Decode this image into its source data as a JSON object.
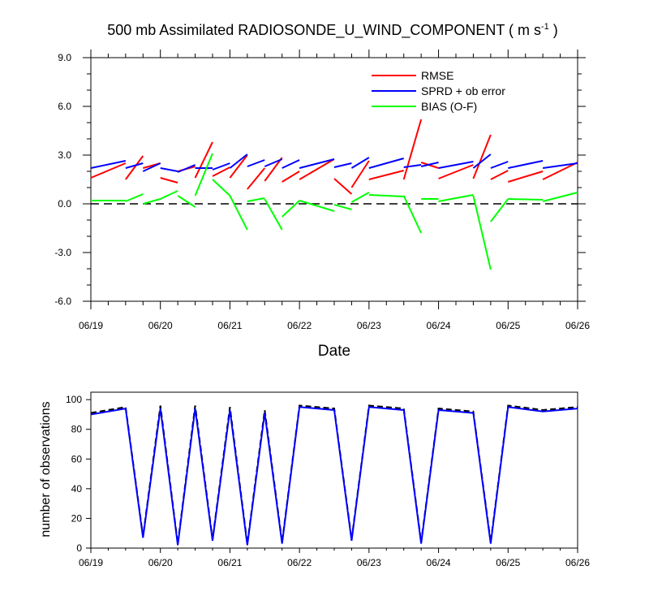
{
  "colors": {
    "rmse": "#ff0000",
    "spread": "#0000ff",
    "bias": "#00ff00",
    "axis": "#000000",
    "zero": "#000000"
  },
  "chart_data": [
    {
      "type": "line",
      "title": "500 mb Assimilated RADIOSONDE_U_WIND_COMPONENT ( m s",
      "title_units_exponent": "-1",
      "title_close": " )",
      "xlabel": "Date",
      "ylabel": "",
      "ylim": [
        -6.0,
        9.0
      ],
      "y_ticks": [
        -6.0,
        -3.0,
        0.0,
        3.0,
        6.0,
        9.0
      ],
      "y_tick_labels": [
        "-6.0",
        "-3.0",
        "0.0",
        "3.0",
        "6.0",
        "9.0"
      ],
      "xlim": [
        0,
        7
      ],
      "x_ticks": [
        0,
        1,
        2,
        3,
        4,
        5,
        6,
        7
      ],
      "x_tick_labels": [
        "06/19",
        "06/20",
        "06/21",
        "06/22",
        "06/23",
        "06/24",
        "06/25",
        "06/26"
      ],
      "zero_line": true,
      "legend_position": "top-right",
      "series": [
        {
          "name": "RMSE",
          "color_key": "rmse",
          "segments": [
            {
              "x": [
                0.0,
                0.5
              ],
              "y": [
                1.6,
                2.5
              ]
            },
            {
              "x": [
                0.5,
                0.75
              ],
              "y": [
                1.5,
                2.95
              ]
            },
            {
              "x": [
                0.75,
                1.0
              ],
              "y": [
                2.2,
                2.5
              ]
            },
            {
              "x": [
                1.0,
                1.25
              ],
              "y": [
                1.6,
                1.3
              ]
            },
            {
              "x": [
                1.25,
                1.5
              ],
              "y": [
                2.0,
                2.3
              ]
            },
            {
              "x": [
                1.5,
                1.75
              ],
              "y": [
                1.6,
                3.8
              ]
            },
            {
              "x": [
                1.75,
                2.0
              ],
              "y": [
                1.7,
                2.25
              ]
            },
            {
              "x": [
                2.0,
                2.25
              ],
              "y": [
                1.6,
                3.0
              ]
            },
            {
              "x": [
                2.25,
                2.5
              ],
              "y": [
                0.9,
                2.2
              ]
            },
            {
              "x": [
                2.5,
                2.75
              ],
              "y": [
                1.4,
                2.85
              ]
            },
            {
              "x": [
                2.75,
                3.0
              ],
              "y": [
                1.35,
                2.0
              ]
            },
            {
              "x": [
                3.0,
                3.5
              ],
              "y": [
                1.5,
                2.75
              ]
            },
            {
              "x": [
                3.5,
                3.75
              ],
              "y": [
                1.55,
                0.6
              ]
            },
            {
              "x": [
                3.75,
                4.0
              ],
              "y": [
                1.0,
                2.65
              ]
            },
            {
              "x": [
                4.0,
                4.5
              ],
              "y": [
                1.5,
                2.05
              ]
            },
            {
              "x": [
                4.5,
                4.75
              ],
              "y": [
                1.5,
                5.2
              ]
            },
            {
              "x": [
                4.75,
                5.0
              ],
              "y": [
                2.55,
                2.2
              ]
            },
            {
              "x": [
                5.0,
                5.5
              ],
              "y": [
                1.55,
                2.4
              ]
            },
            {
              "x": [
                5.5,
                5.75
              ],
              "y": [
                1.55,
                4.25
              ]
            },
            {
              "x": [
                5.75,
                6.0
              ],
              "y": [
                1.5,
                2.05
              ]
            },
            {
              "x": [
                6.0,
                6.5
              ],
              "y": [
                1.35,
                2.0
              ]
            },
            {
              "x": [
                6.5,
                7.0
              ],
              "y": [
                1.5,
                2.55
              ]
            }
          ]
        },
        {
          "name": "SPRD + ob error",
          "color_key": "spread",
          "segments": [
            {
              "x": [
                0.0,
                0.5
              ],
              "y": [
                2.2,
                2.65
              ]
            },
            {
              "x": [
                0.5,
                0.75
              ],
              "y": [
                2.2,
                2.5
              ]
            },
            {
              "x": [
                0.75,
                1.0
              ],
              "y": [
                2.0,
                2.5
              ]
            },
            {
              "x": [
                1.0,
                1.25
              ],
              "y": [
                2.2,
                2.0
              ]
            },
            {
              "x": [
                1.25,
                1.5
              ],
              "y": [
                1.95,
                2.4
              ]
            },
            {
              "x": [
                1.5,
                1.75
              ],
              "y": [
                2.2,
                2.2
              ]
            },
            {
              "x": [
                1.75,
                2.0
              ],
              "y": [
                2.1,
                2.5
              ]
            },
            {
              "x": [
                2.0,
                2.25
              ],
              "y": [
                2.2,
                3.05
              ]
            },
            {
              "x": [
                2.25,
                2.5
              ],
              "y": [
                2.3,
                2.7
              ]
            },
            {
              "x": [
                2.5,
                2.75
              ],
              "y": [
                2.3,
                2.75
              ]
            },
            {
              "x": [
                2.75,
                3.0
              ],
              "y": [
                2.2,
                2.7
              ]
            },
            {
              "x": [
                3.0,
                3.5
              ],
              "y": [
                2.2,
                2.75
              ]
            },
            {
              "x": [
                3.5,
                3.75
              ],
              "y": [
                2.25,
                2.5
              ]
            },
            {
              "x": [
                3.75,
                4.0
              ],
              "y": [
                2.2,
                2.85
              ]
            },
            {
              "x": [
                4.0,
                4.5
              ],
              "y": [
                2.2,
                2.8
              ]
            },
            {
              "x": [
                4.5,
                4.75
              ],
              "y": [
                2.25,
                2.4
              ]
            },
            {
              "x": [
                4.75,
                5.0
              ],
              "y": [
                2.3,
                2.55
              ]
            },
            {
              "x": [
                5.0,
                5.5
              ],
              "y": [
                2.2,
                2.6
              ]
            },
            {
              "x": [
                5.5,
                5.75
              ],
              "y": [
                2.2,
                3.05
              ]
            },
            {
              "x": [
                5.75,
                6.0
              ],
              "y": [
                2.2,
                2.6
              ]
            },
            {
              "x": [
                6.0,
                6.5
              ],
              "y": [
                2.2,
                2.65
              ]
            },
            {
              "x": [
                6.5,
                7.0
              ],
              "y": [
                2.2,
                2.5
              ]
            }
          ]
        },
        {
          "name": "BIAS (O-F)",
          "color_key": "bias",
          "segments": [
            {
              "x": [
                0.0,
                0.5
              ],
              "y": [
                0.2,
                0.2
              ]
            },
            {
              "x": [
                0.5,
                0.75
              ],
              "y": [
                0.15,
                0.6
              ]
            },
            {
              "x": [
                0.75,
                1.0
              ],
              "y": [
                0.0,
                0.3
              ]
            },
            {
              "x": [
                1.0,
                1.25
              ],
              "y": [
                0.3,
                0.8
              ]
            },
            {
              "x": [
                1.25,
                1.5
              ],
              "y": [
                0.5,
                -0.2
              ]
            },
            {
              "x": [
                1.5,
                1.75
              ],
              "y": [
                0.5,
                3.1
              ]
            },
            {
              "x": [
                1.75,
                2.0
              ],
              "y": [
                1.5,
                0.5
              ]
            },
            {
              "x": [
                2.0,
                2.25
              ],
              "y": [
                0.5,
                -1.6
              ]
            },
            {
              "x": [
                2.25,
                2.5
              ],
              "y": [
                0.15,
                0.35
              ]
            },
            {
              "x": [
                2.5,
                2.75
              ],
              "y": [
                0.3,
                -1.6
              ]
            },
            {
              "x": [
                2.75,
                3.0
              ],
              "y": [
                -0.8,
                0.2
              ]
            },
            {
              "x": [
                3.0,
                3.5
              ],
              "y": [
                0.2,
                -0.45
              ]
            },
            {
              "x": [
                3.5,
                3.75
              ],
              "y": [
                -0.05,
                -0.35
              ]
            },
            {
              "x": [
                3.75,
                4.0
              ],
              "y": [
                0.1,
                0.7
              ]
            },
            {
              "x": [
                4.0,
                4.5
              ],
              "y": [
                0.55,
                0.45
              ]
            },
            {
              "x": [
                4.5,
                4.75
              ],
              "y": [
                0.5,
                -1.8
              ]
            },
            {
              "x": [
                4.75,
                5.0
              ],
              "y": [
                0.3,
                0.3
              ]
            },
            {
              "x": [
                5.0,
                5.5
              ],
              "y": [
                0.15,
                0.55
              ]
            },
            {
              "x": [
                5.5,
                5.75
              ],
              "y": [
                0.5,
                -4.05
              ]
            },
            {
              "x": [
                5.75,
                6.0
              ],
              "y": [
                -1.1,
                0.3
              ]
            },
            {
              "x": [
                6.0,
                6.5
              ],
              "y": [
                0.3,
                0.25
              ]
            },
            {
              "x": [
                6.5,
                7.0
              ],
              "y": [
                0.15,
                0.7
              ]
            }
          ]
        }
      ]
    },
    {
      "type": "line",
      "title": "",
      "xlabel": "",
      "ylabel": "number of observations",
      "ylim": [
        0,
        105
      ],
      "y_ticks": [
        0,
        20,
        40,
        60,
        80,
        100
      ],
      "y_tick_labels": [
        "0",
        "20",
        "40",
        "60",
        "80",
        "100"
      ],
      "xlim": [
        0,
        7
      ],
      "x_ticks": [
        0,
        1,
        2,
        3,
        4,
        5,
        6,
        7
      ],
      "x_tick_labels": [
        "06/19",
        "06/20",
        "06/21",
        "06/22",
        "06/23",
        "06/24",
        "06/25",
        "06/26"
      ],
      "series": [
        {
          "style": "dashed",
          "color": "#000000",
          "x": [
            0.0,
            0.5,
            0.75,
            1.0,
            1.25,
            1.5,
            1.75,
            2.0,
            2.25,
            2.5,
            2.75,
            3.0,
            3.5,
            3.75,
            4.0,
            4.5,
            4.75,
            5.0,
            5.5,
            5.75,
            6.0,
            6.5,
            7.0
          ],
          "y": [
            91,
            95,
            8,
            96,
            3,
            96,
            6,
            95,
            3,
            93,
            4,
            96,
            94,
            6,
            96,
            94,
            4,
            94,
            92,
            4,
            96,
            93,
            95
          ]
        },
        {
          "style": "solid",
          "color": "#0000ff",
          "x": [
            0.0,
            0.5,
            0.75,
            1.0,
            1.25,
            1.5,
            1.75,
            2.0,
            2.25,
            2.5,
            2.75,
            3.0,
            3.5,
            3.75,
            4.0,
            4.5,
            4.75,
            5.0,
            5.5,
            5.75,
            6.0,
            6.5,
            7.0
          ],
          "y": [
            90,
            94,
            7,
            94,
            2,
            94,
            5,
            93,
            2,
            91,
            3,
            95,
            93,
            5,
            95,
            93,
            3,
            93,
            91,
            3,
            95,
            92,
            94
          ]
        }
      ]
    }
  ]
}
